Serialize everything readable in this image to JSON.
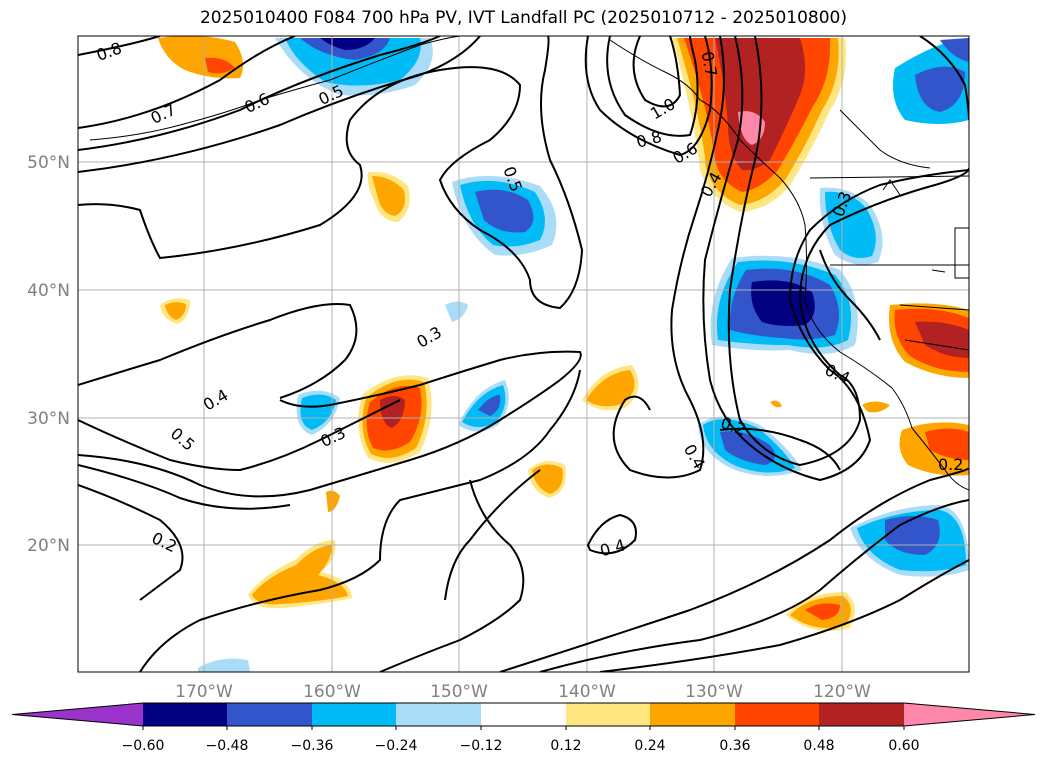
{
  "title": "2025010400 F084 700 hPa PV, IVT Landfall PC (2025010712 - 2025010800)",
  "lat_labels": [
    "50°N",
    "40°N",
    "30°N",
    "20°N"
  ],
  "lon_labels": [
    "170°W",
    "160°W",
    "150°W",
    "140°W",
    "130°W",
    "120°W"
  ],
  "contour_labels": [
    "0.8",
    "0.7",
    "0.6",
    "0.5",
    "0.5",
    "1.0",
    "0.8",
    "0.6",
    "0.4",
    "0.3",
    "0.3",
    "0.4",
    "0.5",
    "0.3",
    "0.2",
    "0.2",
    "0.4",
    "0.4",
    "0.4",
    "0.2",
    "0.7"
  ],
  "colorbar": {
    "ticks": [
      "−0.60",
      "−0.48",
      "−0.36",
      "−0.24",
      "−0.12",
      "0.12",
      "0.24",
      "0.36",
      "0.48",
      "0.60"
    ],
    "colors": [
      "#9933cc",
      "#000080",
      "#3355cc",
      "#00bbf5",
      "#aadcf8",
      "#ffffff",
      "#ffe680",
      "#ffa500",
      "#ff4500",
      "#b22222",
      "#ff88aa"
    ]
  },
  "colors": {
    "grid": "#b0b0b0",
    "contour": "#000000",
    "coast": "#000000"
  }
}
